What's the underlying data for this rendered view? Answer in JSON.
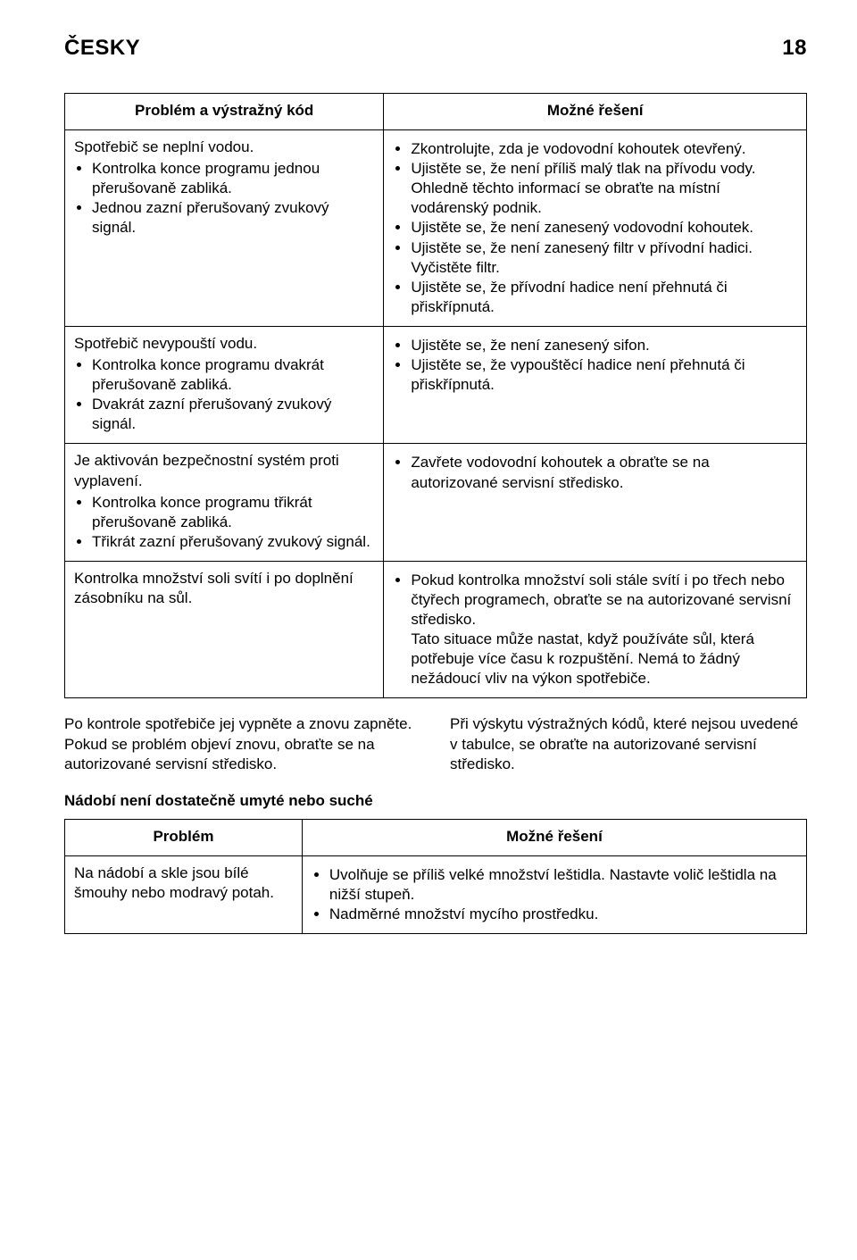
{
  "header": {
    "lang": "ČESKY",
    "page_no": "18"
  },
  "table1": {
    "head_left": "Problém a výstražný kód",
    "head_right": "Možné řešení",
    "rows": [
      {
        "left_intro": "Spotřebič se neplní vodou.",
        "left_items": [
          "Kontrolka konce programu jednou přerušovaně zabliká.",
          "Jednou zazní přerušovaný zvukový signál."
        ],
        "right_items": [
          "Zkontrolujte, zda je vodovodní kohoutek otevřený.",
          "Ujistěte se, že není příliš malý tlak na přívodu vody. Ohledně těchto informací se obraťte na místní vodárenský podnik.",
          "Ujistěte se, že není zanesený vodovodní kohoutek.",
          "Ujistěte se, že není zanesený filtr v přívodní hadici. Vyčistěte filtr.",
          "Ujistěte se, že přívodní hadice není přehnutá či přiskřípnutá."
        ]
      },
      {
        "left_intro": "Spotřebič nevypouští vodu.",
        "left_items": [
          "Kontrolka konce programu dvakrát přerušovaně zabliká.",
          "Dvakrát zazní přerušovaný zvukový signál."
        ],
        "right_items": [
          "Ujistěte se, že není zanesený sifon.",
          "Ujistěte se, že vypouštěcí hadice není přehnutá či přiskřípnutá."
        ]
      },
      {
        "left_intro": "Je aktivován bezpečnostní systém proti vyplavení.",
        "left_items": [
          "Kontrolka konce programu třikrát přerušovaně zabliká.",
          "Třikrát zazní přerušovaný zvukový signál."
        ],
        "right_items": [
          "Zavřete vodovodní kohoutek a obraťte se na autorizované servisní středisko."
        ]
      },
      {
        "left_intro": "Kontrolka množství soli svítí i po doplnění zásobníku na sůl.",
        "left_items": [],
        "right_items": [
          "Pokud kontrolka množství soli stále svítí i po třech nebo čtyřech programech, obraťte se na autorizované servisní středisko.\nTato situace může nastat, když používáte sůl, která potřebuje více času k rozpuštění. Nemá to žádný nežádoucí vliv na výkon spotřebiče."
        ]
      }
    ]
  },
  "mid": {
    "left": "Po kontrole spotřebiče jej vypněte a znovu zapněte. Pokud se problém objeví znovu, obraťte se na autorizované servisní středisko.",
    "right": "Při výskytu výstražných kódů, které nejsou uvedené v tabulce, se obraťte na autorizované servisní středisko."
  },
  "section2_title": "Nádobí není dostatečně umyté nebo suché",
  "table2": {
    "head_left": "Problém",
    "head_right": "Možné řešení",
    "rows": [
      {
        "left_intro": "Na nádobí a skle jsou bílé šmouhy nebo modravý potah.",
        "right_items": [
          "Uvolňuje se příliš velké množství leštidla. Nastavte volič leštidla na nižší stupeň.",
          "Nadměrné množství mycího prostředku."
        ]
      }
    ]
  }
}
